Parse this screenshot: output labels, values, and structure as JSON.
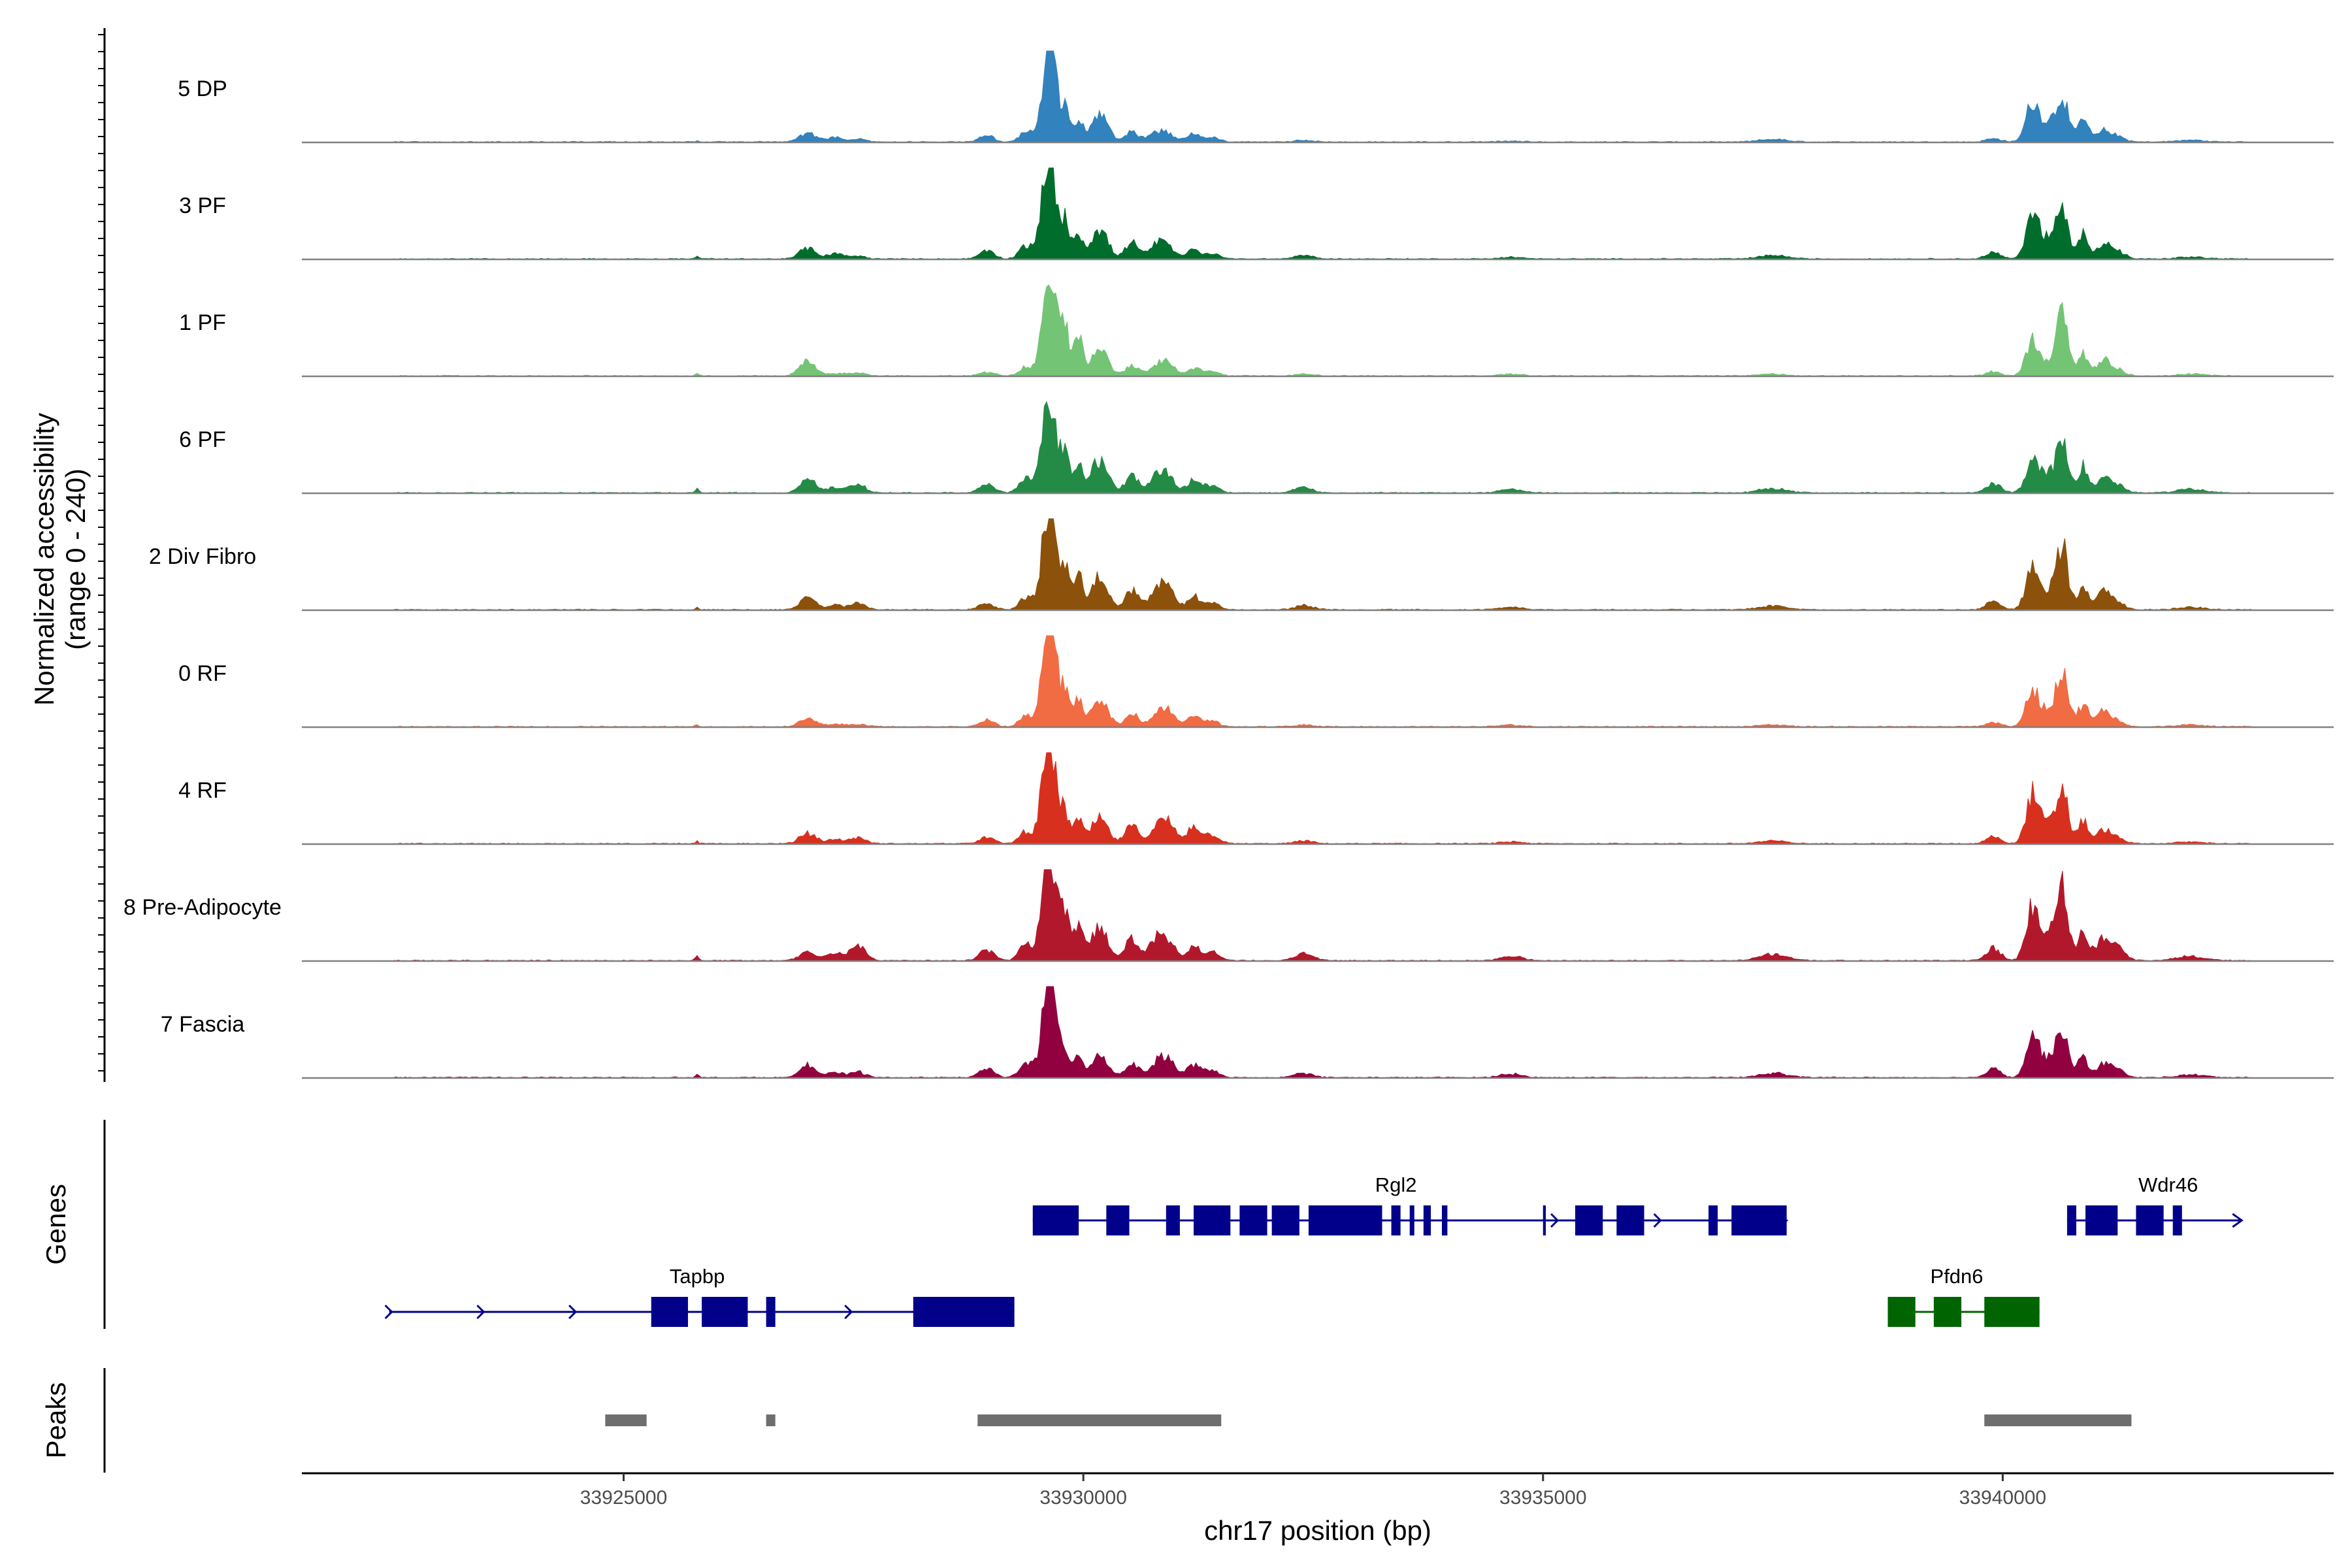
{
  "chart_data": {
    "type": "area",
    "title": "",
    "chromosome": "chr17",
    "xlabel": "chr17 position (bp)",
    "ylabel": "Normalized accessibility",
    "ylabel_range": "(range 0 - 240)",
    "ylim": [
      0,
      240
    ],
    "xlim": [
      33921500,
      33943600
    ],
    "x_ticks": [
      33925000,
      33930000,
      33935000,
      33940000
    ],
    "x_tick_labels": [
      "33925000",
      "33930000",
      "33935000",
      "33940000"
    ],
    "track_section_labels": {
      "genes": "Genes",
      "peaks": "Peaks"
    },
    "peak_profile": [
      [
        33922500,
        33929100,
        0.05,
        0.03,
        18
      ],
      [
        33925000,
        33929000,
        0.09,
        0.2,
        85
      ],
      [
        33926000,
        33928600,
        0.02,
        0.04,
        90
      ],
      [
        33926600,
        33928500,
        0.05,
        0.1,
        85
      ],
      [
        33928600,
        33929300,
        0.05,
        0.12,
        80
      ],
      [
        33929250,
        33929500,
        0.18,
        0.1,
        70
      ],
      [
        33929450,
        33929700,
        0.55,
        0.3,
        60
      ],
      [
        33929550,
        33929750,
        1.0,
        0.62,
        60
      ],
      [
        33929700,
        33929900,
        0.55,
        0.25,
        55
      ],
      [
        33929850,
        33930050,
        0.28,
        0.22,
        45
      ],
      [
        33930000,
        33930350,
        0.4,
        0.32,
        90
      ],
      [
        33930350,
        33930700,
        0.2,
        0.15,
        70
      ],
      [
        33930600,
        33931000,
        0.15,
        0.14,
        90
      ],
      [
        33930750,
        33931100,
        0.1,
        0.18,
        80
      ],
      [
        33931000,
        33931400,
        0.15,
        0.2,
        70
      ],
      [
        33931300,
        33931500,
        0.1,
        0.08,
        80
      ],
      [
        33931300,
        33933500,
        0.04,
        0.05,
        100
      ],
      [
        33933300,
        33936000,
        0.02,
        0.04,
        120
      ],
      [
        33935000,
        33940000,
        0.04,
        0.03,
        150
      ],
      [
        33939600,
        33940200,
        0.06,
        0.08,
        80
      ],
      [
        33940200,
        33940450,
        0.55,
        0.55,
        70
      ],
      [
        33940350,
        33940650,
        0.22,
        0.22,
        70
      ],
      [
        33940550,
        33940750,
        0.75,
        0.72,
        60
      ],
      [
        33940750,
        33941000,
        0.3,
        0.28,
        60
      ],
      [
        33941000,
        33941200,
        0.15,
        0.18,
        70
      ],
      [
        33941100,
        33941400,
        0.07,
        0.12,
        80
      ],
      [
        33941400,
        33942700,
        0.03,
        0.03,
        150
      ]
    ],
    "series": [
      {
        "name": "5 DP",
        "color": "#3182bd",
        "peak_heights": [
          0.02,
          0.1,
          0.05,
          0.03,
          0.07,
          0.12,
          0.42,
          0.95,
          0.35,
          0.22,
          0.3,
          0.12,
          0.1,
          0.06,
          0.1,
          0.05,
          0.02,
          0.01,
          0.03,
          0.04,
          0.45,
          0.22,
          0.52,
          0.25,
          0.12,
          0.06,
          0.02
        ]
      },
      {
        "name": "3 PF",
        "color": "#006d2c",
        "peak_heights": [
          0.03,
          0.12,
          0.06,
          0.03,
          0.09,
          0.15,
          0.48,
          0.92,
          0.42,
          0.28,
          0.33,
          0.18,
          0.15,
          0.1,
          0.1,
          0.06,
          0.04,
          0.02,
          0.04,
          0.07,
          0.5,
          0.22,
          0.6,
          0.3,
          0.15,
          0.08,
          0.02
        ]
      },
      {
        "name": "1 PF",
        "color": "#74c476",
        "peak_heights": [
          0.03,
          0.17,
          0.03,
          0.03,
          0.04,
          0.1,
          0.5,
          0.98,
          0.52,
          0.4,
          0.3,
          0.12,
          0.1,
          0.12,
          0.08,
          0.05,
          0.02,
          0.02,
          0.02,
          0.05,
          0.43,
          0.15,
          0.7,
          0.25,
          0.18,
          0.07,
          0.02
        ]
      },
      {
        "name": "6 PF",
        "color": "#238b45",
        "peak_heights": [
          0.05,
          0.16,
          0.06,
          0.09,
          0.1,
          0.18,
          0.45,
          0.85,
          0.45,
          0.33,
          0.36,
          0.2,
          0.18,
          0.14,
          0.14,
          0.08,
          0.06,
          0.04,
          0.05,
          0.1,
          0.35,
          0.2,
          0.58,
          0.3,
          0.17,
          0.09,
          0.04
        ]
      },
      {
        "name": "2 Div Fibro",
        "color": "#8c510a",
        "peak_heights": [
          0.03,
          0.14,
          0.05,
          0.07,
          0.07,
          0.15,
          0.5,
          0.98,
          0.45,
          0.35,
          0.36,
          0.22,
          0.18,
          0.2,
          0.15,
          0.08,
          0.05,
          0.03,
          0.04,
          0.09,
          0.5,
          0.2,
          0.72,
          0.28,
          0.2,
          0.08,
          0.03
        ]
      },
      {
        "name": "0 RF",
        "color": "#f16b43",
        "peak_heights": [
          0.02,
          0.1,
          0.03,
          0.03,
          0.07,
          0.12,
          0.48,
          0.98,
          0.42,
          0.3,
          0.3,
          0.15,
          0.12,
          0.16,
          0.12,
          0.06,
          0.02,
          0.02,
          0.02,
          0.05,
          0.42,
          0.18,
          0.66,
          0.25,
          0.18,
          0.06,
          0.02
        ]
      },
      {
        "name": "4 RF",
        "color": "#d7301f",
        "peak_heights": [
          0.03,
          0.12,
          0.05,
          0.06,
          0.07,
          0.14,
          0.5,
          0.92,
          0.35,
          0.25,
          0.28,
          0.2,
          0.15,
          0.2,
          0.2,
          0.1,
          0.03,
          0.02,
          0.03,
          0.08,
          0.56,
          0.2,
          0.62,
          0.25,
          0.15,
          0.06,
          0.02
        ]
      },
      {
        "name": "8 Pre-Adipocyte",
        "color": "#b2182b",
        "peak_heights": [
          0.06,
          0.1,
          0.08,
          0.15,
          0.12,
          0.2,
          0.6,
          0.98,
          0.5,
          0.38,
          0.38,
          0.25,
          0.22,
          0.18,
          0.15,
          0.1,
          0.08,
          0.05,
          0.07,
          0.14,
          0.6,
          0.28,
          0.78,
          0.35,
          0.25,
          0.14,
          0.05
        ]
      },
      {
        "name": "7 Fascia",
        "color": "#91003f",
        "peak_heights": [
          0.04,
          0.15,
          0.05,
          0.06,
          0.1,
          0.18,
          0.45,
          0.9,
          0.32,
          0.25,
          0.26,
          0.16,
          0.14,
          0.18,
          0.14,
          0.08,
          0.05,
          0.04,
          0.05,
          0.1,
          0.48,
          0.2,
          0.55,
          0.22,
          0.15,
          0.08,
          0.03
        ]
      }
    ],
    "genes": [
      {
        "name": "Rgl2",
        "strand": "+",
        "row": 1,
        "color": "#00008b",
        "start": 33929450,
        "end": 33937650,
        "exons": [
          [
            33929450,
            33929950
          ],
          [
            33930250,
            33930500
          ],
          [
            33930900,
            33931050
          ],
          [
            33931200,
            33931600
          ],
          [
            33931700,
            33932000
          ],
          [
            33932050,
            33932350
          ],
          [
            33932450,
            33933250
          ],
          [
            33933350,
            33933450
          ],
          [
            33933550,
            33933600
          ],
          [
            33933700,
            33933780
          ],
          [
            33933900,
            33933960
          ],
          [
            33935000,
            33935030
          ],
          [
            33935350,
            33935650
          ],
          [
            33935800,
            33936100
          ],
          [
            33936800,
            33936900
          ],
          [
            33937050,
            33937650
          ]
        ],
        "arrows": [
          33932900,
          33935130,
          33936250
        ]
      },
      {
        "name": "Wdr46",
        "strand": "+",
        "row": 1,
        "color": "#00008b",
        "start": 33940700,
        "end": 33942600,
        "exons": [
          [
            33940700,
            33940800
          ],
          [
            33940900,
            33941250
          ],
          [
            33941450,
            33941750
          ],
          [
            33941850,
            33941950
          ]
        ],
        "arrows": [
          33940750
        ]
      },
      {
        "name": "Tapbp",
        "strand": "+",
        "row": 2,
        "color": "#00008b",
        "start": 33922450,
        "end": 33929250,
        "exons": [
          [
            33925300,
            33925700
          ],
          [
            33925850,
            33926350
          ],
          [
            33926550,
            33926650
          ],
          [
            33928150,
            33929250
          ]
        ],
        "arrows": [
          33922450,
          33923450,
          33924450,
          33927450
        ]
      },
      {
        "name": "Pfdn6",
        "strand": "-",
        "row": 2,
        "color": "#006400",
        "start": 33938750,
        "end": 33940400,
        "exons": [
          [
            33938750,
            33939050
          ],
          [
            33939250,
            33939550
          ],
          [
            33939800,
            33940400
          ]
        ],
        "arrows": []
      }
    ],
    "peaks": [
      [
        33924800,
        33925250
      ],
      [
        33926550,
        33926650
      ],
      [
        33928850,
        33931500
      ],
      [
        33939800,
        33941400
      ]
    ]
  }
}
